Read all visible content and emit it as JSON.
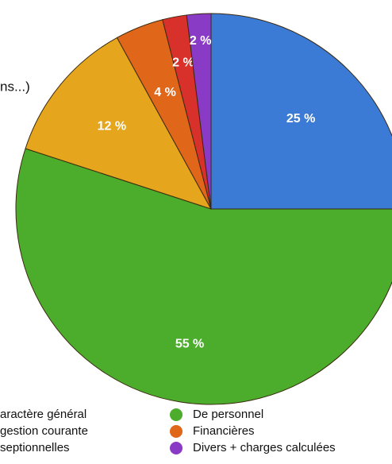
{
  "chart_data": {
    "type": "pie",
    "annotation": "ns...)",
    "categories": [
      "aractère général",
      "De personnel",
      "gestion courante",
      "Financières",
      "septionnelles",
      "Divers + charges calculées"
    ],
    "values": [
      25,
      55,
      12,
      4,
      2,
      2
    ],
    "value_labels": [
      "25 %",
      "55 %",
      "12 %",
      "4 %",
      "2 %",
      "2 %"
    ],
    "colors": [
      "#3b7bd6",
      "#4cad2c",
      "#e5a51c",
      "#e0661a",
      "#d8302a",
      "#8a3bc6"
    ]
  }
}
